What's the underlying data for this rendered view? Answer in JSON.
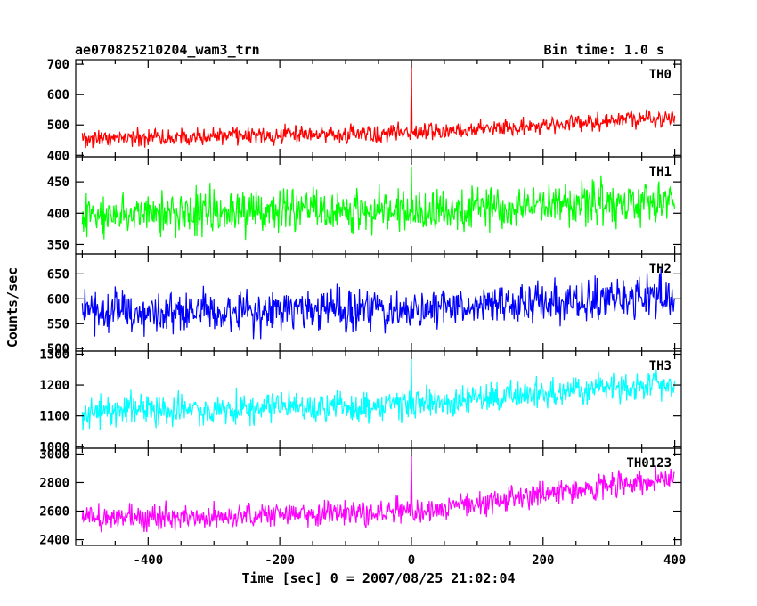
{
  "header": {
    "title": "ae070825210204_wam3_trn",
    "bin_time": "Bin time: 1.0 s"
  },
  "chart_data": {
    "type": "line",
    "xlabel": "Time [sec] 0 = 2007/08/25 21:02:04",
    "ylabel": "Counts/sec",
    "xlim": [
      -510,
      410
    ],
    "xticks": [
      -400,
      -200,
      0,
      200,
      400
    ],
    "bin_time_s": 1.0,
    "grid": false,
    "panels": [
      {
        "name": "TH0",
        "color": "#ff0000",
        "ylim": [
          395,
          715
        ],
        "yticks": [
          400,
          500,
          600,
          700
        ],
        "trend": [
          {
            "x": -500,
            "y": 455
          },
          {
            "x": 0,
            "y": 475
          },
          {
            "x": 400,
            "y": 525
          }
        ],
        "noise_amplitude": 25,
        "spikes": [
          {
            "x": 0,
            "y": 715
          }
        ]
      },
      {
        "name": "TH1",
        "color": "#00ff00",
        "ylim": [
          335,
          490
        ],
        "yticks": [
          350,
          400,
          450
        ],
        "trend": [
          {
            "x": -500,
            "y": 400
          },
          {
            "x": 0,
            "y": 402
          },
          {
            "x": 400,
            "y": 420
          }
        ],
        "noise_amplitude": 30,
        "spikes": [
          {
            "x": 0,
            "y": 475
          }
        ]
      },
      {
        "name": "TH2",
        "color": "#0000ff",
        "ylim": [
          495,
          690
        ],
        "yticks": [
          500,
          550,
          600,
          650
        ],
        "trend": [
          {
            "x": -500,
            "y": 575
          },
          {
            "x": 0,
            "y": 578
          },
          {
            "x": 400,
            "y": 605
          }
        ],
        "noise_amplitude": 35,
        "spikes": []
      },
      {
        "name": "TH3",
        "color": "#00ffff",
        "ylim": [
          995,
          1310
        ],
        "yticks": [
          1000,
          1100,
          1200,
          1300
        ],
        "trend": [
          {
            "x": -500,
            "y": 1115
          },
          {
            "x": 0,
            "y": 1135
          },
          {
            "x": 400,
            "y": 1205
          }
        ],
        "noise_amplitude": 45,
        "spikes": [
          {
            "x": 0,
            "y": 1290
          }
        ]
      },
      {
        "name": "TH0123",
        "color": "#ff00ff",
        "ylim": [
          2360,
          3040
        ],
        "yticks": [
          2400,
          2600,
          2800,
          3000
        ],
        "trend": [
          {
            "x": -500,
            "y": 2550
          },
          {
            "x": 0,
            "y": 2590
          },
          {
            "x": 400,
            "y": 2840
          }
        ],
        "noise_amplitude": 75,
        "spikes": [
          {
            "x": 0,
            "y": 3000
          }
        ]
      }
    ]
  }
}
